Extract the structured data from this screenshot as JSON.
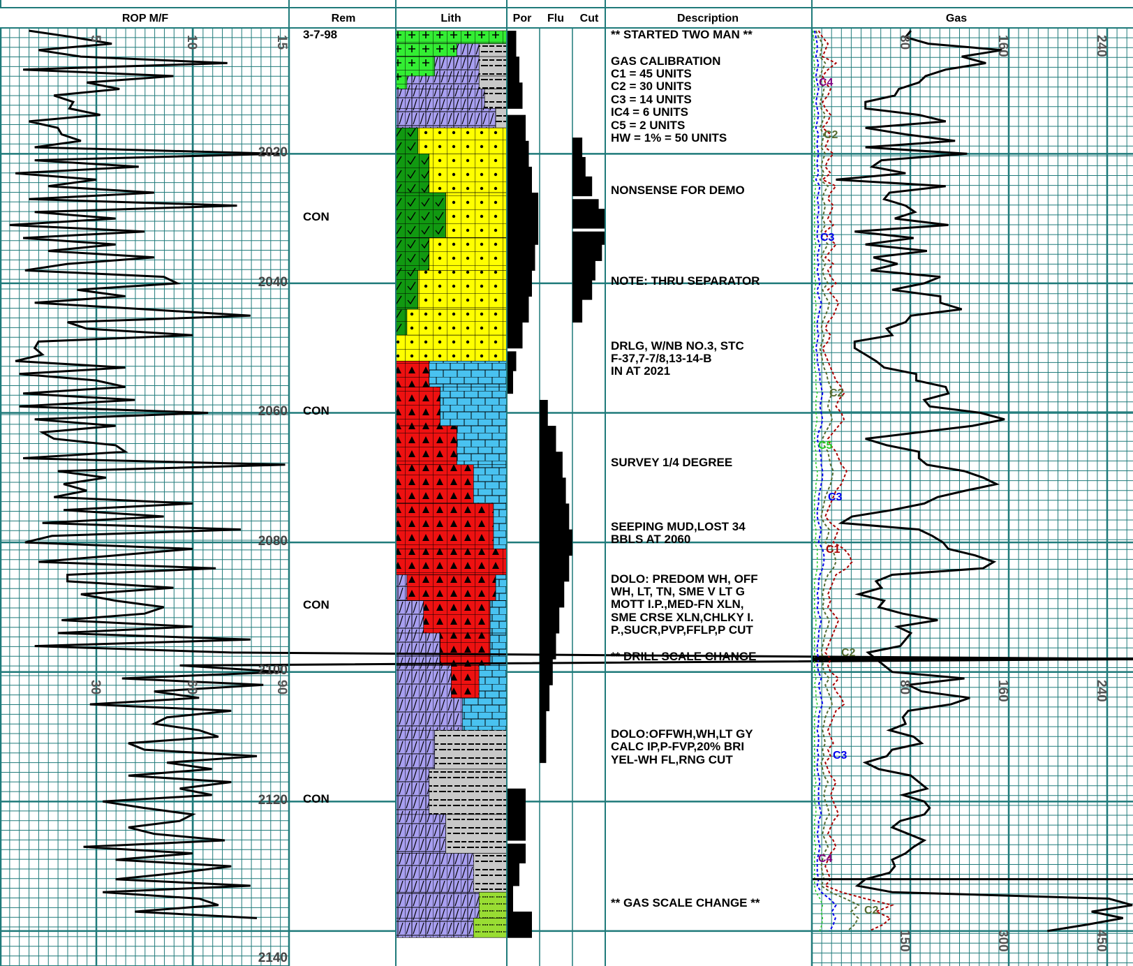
{
  "headers": {
    "rop": "ROP M/F",
    "rem": "Rem",
    "lith": "Lith",
    "por": "Por",
    "flu": "Flu",
    "cut": "Cut",
    "description": "Description",
    "gas": "Gas"
  },
  "depth_labels": [
    "2020",
    "2040",
    "2060",
    "2080",
    "2100",
    "2120",
    "2140"
  ],
  "rop_scale_upper": [
    "5",
    "10",
    "15"
  ],
  "rop_scale_lower": [
    "30",
    "60",
    "90"
  ],
  "gas_scale_upper": [
    "80",
    "160",
    "240"
  ],
  "gas_scale_middle": [
    "80",
    "160",
    "240"
  ],
  "gas_scale_lower": [
    "150",
    "300",
    "450"
  ],
  "remarks": [
    {
      "depth": 2001,
      "text": "3-7-98"
    },
    {
      "depth": 2030,
      "text": "CON"
    },
    {
      "depth": 2060,
      "text": "CON"
    },
    {
      "depth": 2090,
      "text": "CON"
    },
    {
      "depth": 2120,
      "text": "CON"
    }
  ],
  "descriptions": [
    {
      "depth": 2001,
      "lines": [
        "** STARTED TWO MAN **"
      ]
    },
    {
      "depth": 2005,
      "lines": [
        "GAS CALIBRATION",
        "C1 = 45 UNITS",
        "C2 = 30 UNITS",
        "C3 = 14 UNITS",
        "IC4 = 6 UNITS",
        "C5 = 2 UNITS",
        "HW = 1% = 50 UNITS"
      ]
    },
    {
      "depth": 2026,
      "lines": [
        "NONSENSE FOR DEMO"
      ]
    },
    {
      "depth": 2040,
      "lines": [
        "NOTE: THRU SEPARATOR"
      ]
    },
    {
      "depth": 2050,
      "lines": [
        "DRLG, W/NB NO.3, STC",
        "F-37,7-7/8,13-14-B",
        "IN AT 2021"
      ]
    },
    {
      "depth": 2067,
      "lines": [
        "SURVEY 1/4 DEGREE"
      ]
    },
    {
      "depth": 2077,
      "lines": [
        "SEEPING MUD,LOST 34",
        "BBLS AT 2060"
      ]
    },
    {
      "depth": 2086,
      "lines": [
        "DOLO: PREDOM WH, OFF",
        "WH, LT, TN, SME V LT G",
        "MOTT I.P.,MED-FN XLN,",
        "SME CRSE XLN,CHLKY I.",
        "P.,SUCR,PVP,FFLP,P CUT"
      ]
    },
    {
      "depth": 2098,
      "lines": [
        "** DRILL SCALE CHANGE"
      ]
    },
    {
      "depth": 2109,
      "lines": [
        "DOLO:OFFWH,WH,LT GY",
        "CALC IP,P-FVP,20% BRI",
        "YEL-WH FL,RNG CUT"
      ]
    },
    {
      "depth": 2137,
      "lines": [
        "** GAS SCALE CHANGE **"
      ]
    }
  ],
  "gas_curve_labels": [
    {
      "text": "C4",
      "depth": 2008,
      "color": "#800080"
    },
    {
      "text": "C2",
      "depth": 2016,
      "color": "#556b2f"
    },
    {
      "text": "C3",
      "depth": 2033,
      "color": "#0000ee"
    },
    {
      "text": "C2",
      "depth": 2058,
      "color": "#556b2f"
    },
    {
      "text": "C5",
      "depth": 2064,
      "color": "#22cc22"
    },
    {
      "text": "C3",
      "depth": 2071,
      "color": "#0000ee"
    },
    {
      "text": "C1",
      "depth": 2081,
      "color": "#aa0000"
    },
    {
      "text": "C2",
      "depth": 2098,
      "color": "#556b2f"
    },
    {
      "text": "C3",
      "depth": 2111,
      "color": "#0000ee"
    },
    {
      "text": "C4",
      "depth": 2131,
      "color": "#800080"
    },
    {
      "text": "C2",
      "depth": 2138,
      "color": "#556b2f"
    }
  ],
  "colors": {
    "grid": "#1f7a7a",
    "dolomite": "#a89ff0",
    "limestone": "#49c2f0",
    "sandstone": "#ffff00",
    "chert": "#ee1111",
    "shale": "#c8c8c8",
    "anhydrite": "#33ee33",
    "green_lith": "#119911",
    "lime_green": "#99dd33"
  },
  "chart_data": {
    "type": "line",
    "title": "",
    "depth_range": [
      2001,
      2140
    ],
    "rop": {
      "scale_change_depth": 2098,
      "upper_range": [
        0,
        15
      ],
      "lower_range": [
        0,
        90
      ],
      "depths": [
        2001,
        2002,
        2003,
        2004,
        2005,
        2006,
        2007,
        2008,
        2009,
        2010,
        2011,
        2012,
        2013,
        2014,
        2015,
        2016,
        2017,
        2018,
        2019,
        2020,
        2021,
        2022,
        2023,
        2024,
        2025,
        2026,
        2027,
        2028,
        2029,
        2030,
        2031,
        2032,
        2033,
        2034,
        2035,
        2036,
        2037,
        2038,
        2039,
        2040,
        2041,
        2042,
        2043,
        2044,
        2045,
        2046,
        2047,
        2048,
        2049,
        2050,
        2051,
        2052,
        2053,
        2054,
        2055,
        2056,
        2057,
        2058,
        2059,
        2060,
        2061,
        2062,
        2063,
        2064,
        2065,
        2066,
        2067,
        2068,
        2069,
        2070,
        2071,
        2072,
        2073,
        2074,
        2075,
        2076,
        2077,
        2078,
        2079,
        2080,
        2081,
        2082,
        2083,
        2084,
        2085,
        2086,
        2087,
        2088,
        2089,
        2090,
        2091,
        2092,
        2093,
        2094,
        2095,
        2096,
        2097,
        2098,
        2099,
        2100,
        2101,
        2102,
        2103,
        2104,
        2105,
        2106,
        2107,
        2108,
        2109,
        2110,
        2111,
        2112,
        2113,
        2114,
        2115,
        2116,
        2117,
        2118,
        2119,
        2120,
        2121,
        2122,
        2123,
        2124,
        2125,
        2126,
        2127,
        2128,
        2129,
        2130,
        2131,
        2132,
        2133,
        2134,
        2135,
        2136,
        2137,
        2138,
        2139,
        2140
      ],
      "values": [
        1.5,
        3.8,
        5.8,
        2.0,
        4.2,
        11.8,
        1.2,
        9.0,
        4.5,
        6.2,
        2.8,
        3.8,
        3.6,
        5.2,
        1.5,
        3.0,
        3.2,
        4.2,
        1.8,
        14.5,
        1.8,
        7.2,
        0.8,
        5.0,
        2.5,
        8.0,
        1.5,
        12.3,
        1.8,
        6.0,
        0.5,
        7.5,
        1.2,
        6.0,
        2.5,
        8.0,
        3.5,
        1.3,
        8.5,
        9.2,
        4.0,
        6.5,
        1.8,
        7.5,
        13.0,
        3.5,
        4.5,
        10.0,
        2.0,
        1.8,
        2.2,
        0.8,
        6.5,
        1.0,
        5.0,
        6.5,
        1.2,
        7.0,
        1.0,
        10.8,
        1.8,
        6.0,
        2.2,
        2.8,
        6.0,
        6.5,
        1.2,
        14.8,
        3.0,
        5.5,
        3.3,
        4.5,
        2.8,
        10.0,
        3.3,
        8.5,
        2.2,
        12.5,
        2.7,
        1.3,
        10.0,
        6.0,
        2.0,
        11.2,
        3.5,
        3.5,
        9.0,
        4.2,
        6.0,
        8.5,
        7.5,
        3.2,
        10.0,
        3.0,
        13.0,
        1.8,
        12.0,
        60,
        56,
        88,
        38,
        82,
        48,
        62,
        28,
        72,
        52,
        48,
        62,
        68,
        40,
        45,
        80,
        52,
        66,
        40,
        72,
        56,
        66,
        32,
        45,
        60,
        56,
        40,
        48,
        70,
        26,
        60,
        36,
        72,
        56,
        36,
        78,
        32,
        62,
        68,
        42,
        80
      ]
    },
    "gas": {
      "scale_change_depth": 2137,
      "upper_range": [
        0,
        240
      ],
      "lower_range": [
        0,
        450
      ],
      "total": [
        74,
        70,
        87,
        142,
        112,
        130,
        100,
        85,
        80,
        65,
        62,
        40,
        40,
        80,
        100,
        40,
        70,
        107,
        40,
        116,
        52,
        45,
        70,
        18,
        100,
        58,
        54,
        70,
        77,
        62,
        102,
        32,
        76,
        40,
        86,
        46,
        64,
        44,
        96,
        84,
        60,
        96,
        96,
        112,
        74,
        70,
        56,
        60,
        32,
        32,
        40,
        48,
        54,
        78,
        78,
        100,
        102,
        84,
        88,
        126,
        144,
        120,
        80,
        40,
        56,
        80,
        80,
        86,
        114,
        128,
        138,
        115,
        94,
        84,
        60,
        30,
        22,
        80,
        90,
        98,
        102,
        122,
        136,
        128,
        60,
        48,
        52,
        35,
        54,
        50,
        68,
        94,
        64,
        74,
        70,
        66,
        42,
        48,
        54,
        60,
        114,
        72,
        82,
        118,
        104,
        72,
        68,
        70,
        58,
        76,
        82,
        60,
        56,
        40,
        50,
        74,
        80,
        86,
        68,
        84,
        88,
        84,
        66,
        60,
        72,
        84,
        76,
        70,
        60,
        62,
        58,
        40,
        34,
        60,
        222,
        330,
        392,
        436,
        386,
        330
      ],
      "c1": [
        5,
        8,
        12,
        10,
        8,
        18,
        12,
        8,
        10,
        14,
        12,
        8,
        10,
        14,
        12,
        8,
        14,
        12,
        10,
        16,
        12,
        10,
        14,
        8,
        18,
        14,
        12,
        16,
        14,
        12,
        16,
        10,
        12,
        18,
        14,
        10,
        16,
        12,
        14,
        18,
        12,
        16,
        20,
        18,
        16,
        12,
        10,
        14,
        12,
        8,
        10,
        12,
        14,
        16,
        18,
        22,
        24,
        20,
        18,
        22,
        24,
        20,
        16,
        12,
        14,
        18,
        20,
        22,
        26,
        24,
        22,
        18,
        16,
        14,
        12,
        10,
        14,
        20,
        18,
        16,
        24,
        28,
        30,
        26,
        18,
        16,
        14,
        12,
        14,
        12,
        16,
        20,
        18,
        16,
        14,
        12,
        10,
        14,
        12,
        14,
        20,
        16,
        18,
        22,
        24,
        18,
        16,
        14,
        12,
        14,
        16,
        12,
        14,
        10,
        12,
        14,
        18,
        16,
        14,
        16,
        18,
        20,
        16,
        14,
        12,
        16,
        18,
        14,
        12,
        10,
        12,
        14,
        10,
        22,
        40,
        60,
        90,
        110,
        100,
        80
      ],
      "c2": [
        3,
        5,
        8,
        7,
        6,
        10,
        8,
        6,
        7,
        9,
        8,
        6,
        7,
        10,
        8,
        6,
        9,
        8,
        7,
        10,
        8,
        7,
        9,
        6,
        12,
        9,
        8,
        10,
        9,
        8,
        10,
        7,
        8,
        12,
        9,
        7,
        10,
        8,
        9,
        12,
        8,
        10,
        13,
        12,
        10,
        8,
        7,
        9,
        8,
        6,
        7,
        8,
        9,
        11,
        12,
        14,
        15,
        13,
        12,
        14,
        15,
        13,
        10,
        8,
        9,
        12,
        13,
        14,
        16,
        15,
        14,
        12,
        10,
        9,
        8,
        7,
        9,
        13,
        12,
        10,
        15,
        17,
        18,
        16,
        12,
        10,
        9,
        8,
        9,
        8,
        10,
        13,
        12,
        10,
        9,
        8,
        7,
        9,
        8,
        9,
        13,
        10,
        12,
        14,
        15,
        12,
        10,
        9,
        8,
        9,
        10,
        8,
        9,
        7,
        8,
        9,
        12,
        10,
        9,
        10,
        12,
        13,
        10,
        9,
        8,
        10,
        12,
        9,
        8,
        7,
        8,
        9,
        7,
        14,
        25,
        35,
        55,
        65,
        60,
        50
      ],
      "c3": [
        2,
        3,
        4,
        4,
        3,
        5,
        4,
        3,
        4,
        5,
        4,
        3,
        4,
        5,
        4,
        3,
        5,
        4,
        4,
        5,
        4,
        4,
        5,
        3,
        6,
        5,
        4,
        5,
        5,
        4,
        5,
        4,
        4,
        6,
        5,
        4,
        5,
        4,
        5,
        6,
        4,
        5,
        7,
        6,
        5,
        4,
        4,
        5,
        4,
        3,
        4,
        4,
        5,
        6,
        6,
        7,
        8,
        7,
        6,
        7,
        8,
        7,
        5,
        4,
        5,
        6,
        7,
        7,
        8,
        8,
        7,
        6,
        5,
        5,
        4,
        4,
        5,
        7,
        6,
        5,
        8,
        9,
        9,
        8,
        6,
        5,
        5,
        4,
        5,
        4,
        5,
        7,
        6,
        5,
        5,
        4,
        4,
        5,
        4,
        5,
        7,
        5,
        6,
        7,
        8,
        6,
        5,
        5,
        4,
        5,
        5,
        4,
        5,
        4,
        4,
        5,
        6,
        5,
        5,
        5,
        6,
        7,
        5,
        5,
        4,
        5,
        6,
        5,
        4,
        4,
        4,
        5,
        4,
        7,
        13,
        18,
        28,
        33,
        30,
        25
      ],
      "c5": [
        1,
        1,
        2,
        2,
        1,
        2,
        2,
        1,
        2,
        2,
        2,
        1,
        2,
        2,
        2,
        1,
        2,
        2,
        2,
        2,
        2,
        2,
        2,
        1,
        3,
        2,
        2,
        2,
        2,
        2,
        2,
        2,
        2,
        3,
        2,
        2,
        2,
        2,
        2,
        3,
        2,
        2,
        3,
        3,
        2,
        2,
        2,
        2,
        2,
        1,
        2,
        2,
        2,
        3,
        3,
        3,
        4,
        3,
        3,
        3,
        4,
        3,
        2,
        2,
        2,
        3,
        3,
        3,
        4,
        4,
        3,
        3,
        2,
        2,
        2,
        2,
        2,
        3,
        3,
        2,
        4,
        4,
        4,
        4,
        3,
        2,
        2,
        2,
        2,
        2,
        2,
        3,
        3,
        2,
        2,
        2,
        2,
        2,
        2,
        2,
        3,
        2,
        3,
        3,
        4,
        3,
        2,
        2,
        2,
        2,
        2,
        2,
        2,
        2,
        2,
        2,
        3,
        2,
        2,
        2,
        3,
        3,
        2,
        2,
        2,
        2,
        3,
        2,
        2,
        2,
        2,
        2,
        2,
        3,
        6,
        8,
        13,
        15,
        14,
        11
      ]
    },
    "porosity": {
      "depths": [
        2003,
        2007,
        2011,
        2016,
        2020,
        2024,
        2028,
        2032,
        2036,
        2040,
        2044,
        2048,
        2052,
        2055,
        2120,
        2124,
        2128,
        2131,
        2135,
        2139
      ],
      "values": [
        0.3,
        0.4,
        0.5,
        0.6,
        0.7,
        0.8,
        1.0,
        1.0,
        0.9,
        0.8,
        0.7,
        0.5,
        0.3,
        0.2,
        0.6,
        0.6,
        0.6,
        0.4,
        0.2,
        0.8
      ]
    },
    "fluorescence": {
      "depths": [
        2060,
        2064,
        2068,
        2072,
        2076,
        2080,
        2084,
        2088,
        2092,
        2096,
        2100,
        2104,
        2108,
        2112
      ],
      "values": [
        0.25,
        0.5,
        0.7,
        0.8,
        0.9,
        1.0,
        0.9,
        0.75,
        0.6,
        0.5,
        0.4,
        0.3,
        0.2,
        0.2
      ]
    },
    "cut": {
      "depths": [
        2019,
        2022,
        2025,
        2028,
        2030,
        2033,
        2035,
        2038,
        2041,
        2044
      ],
      "values": [
        0.3,
        0.4,
        0.6,
        0.8,
        1.0,
        1.0,
        0.9,
        0.7,
        0.6,
        0.3
      ]
    }
  }
}
